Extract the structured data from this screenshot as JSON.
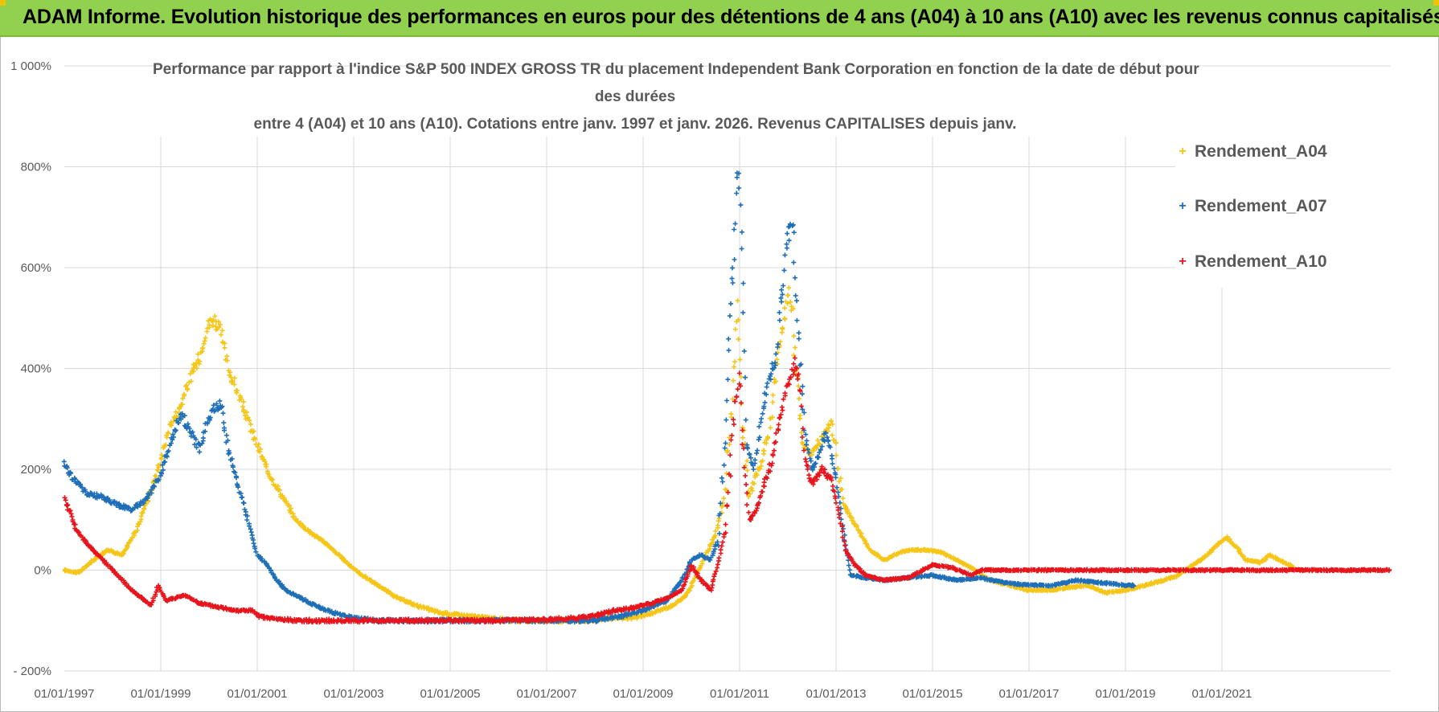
{
  "banner": {
    "title": "ADAM Informe. Evolution historique des performances en euros pour des détentions de 4 ans (A04) à 10 ans (A10) avec les revenus connus capitalisés"
  },
  "colors": {
    "banner_bg": "#92d050",
    "grid": "#d9d9d9",
    "axis_text": "#595959",
    "A04": "#f5c518",
    "A07": "#1f6fb8",
    "A10": "#e8141c"
  },
  "chart_data": {
    "type": "scatter",
    "title_lines": [
      "Performance par rapport à l'indice S&P 500 INDEX GROSS TR  du placement Independent Bank Corporation en fonction de la date de début pour",
      "des durées",
      "entre 4 (A04) et 10 ans (A10).  Cotations entre janv. 1997 et janv. 2026. Revenus CAPITALISES depuis janv."
    ],
    "x_tick_labels": [
      "01/01/1997",
      "01/01/1999",
      "01/01/2001",
      "01/01/2003",
      "01/01/2005",
      "01/01/2007",
      "01/01/2009",
      "01/01/2011",
      "01/01/2013",
      "01/01/2015",
      "01/01/2017",
      "01/01/2019",
      "01/01/2021"
    ],
    "x_range_years": [
      1997.0,
      2024.5
    ],
    "y_tick_labels": [
      "- 200%",
      "0%",
      "200%",
      "400%",
      "600%",
      "800%",
      "1 000%"
    ],
    "y_tick_values": [
      -200,
      0,
      200,
      400,
      600,
      800,
      1000
    ],
    "ylim": [
      -200,
      1000
    ],
    "legend_position": "right",
    "series": [
      {
        "name": "Rendement_A04",
        "marker": "+",
        "points": [
          [
            1997.0,
            0
          ],
          [
            1997.3,
            -5
          ],
          [
            1997.6,
            20
          ],
          [
            1997.9,
            40
          ],
          [
            1998.2,
            30
          ],
          [
            1998.5,
            80
          ],
          [
            1998.8,
            160
          ],
          [
            1999.0,
            220
          ],
          [
            1999.2,
            290
          ],
          [
            1999.4,
            320
          ],
          [
            1999.6,
            380
          ],
          [
            1999.8,
            420
          ],
          [
            1999.95,
            480
          ],
          [
            2000.1,
            500
          ],
          [
            2000.25,
            470
          ],
          [
            2000.4,
            400
          ],
          [
            2000.6,
            350
          ],
          [
            2000.8,
            300
          ],
          [
            2000.95,
            260
          ],
          [
            2001.2,
            200
          ],
          [
            2001.5,
            150
          ],
          [
            2001.8,
            100
          ],
          [
            2002.1,
            75
          ],
          [
            2002.4,
            55
          ],
          [
            2002.8,
            20
          ],
          [
            2003.1,
            -5
          ],
          [
            2003.5,
            -30
          ],
          [
            2003.9,
            -55
          ],
          [
            2004.3,
            -70
          ],
          [
            2004.8,
            -85
          ],
          [
            2005.3,
            -90
          ],
          [
            2005.8,
            -95
          ],
          [
            2006.3,
            -100
          ],
          [
            2006.8,
            -100
          ],
          [
            2007.3,
            -100
          ],
          [
            2007.8,
            -100
          ],
          [
            2008.3,
            -95
          ],
          [
            2008.8,
            -95
          ],
          [
            2009.2,
            -85
          ],
          [
            2009.6,
            -70
          ],
          [
            2009.9,
            -50
          ],
          [
            2010.1,
            -10
          ],
          [
            2010.3,
            30
          ],
          [
            2010.5,
            70
          ],
          [
            2010.7,
            150
          ],
          [
            2010.85,
            350
          ],
          [
            2010.95,
            520
          ],
          [
            2011.05,
            300
          ],
          [
            2011.2,
            150
          ],
          [
            2011.4,
            200
          ],
          [
            2011.6,
            270
          ],
          [
            2011.8,
            420
          ],
          [
            2011.95,
            520
          ],
          [
            2012.05,
            560
          ],
          [
            2012.15,
            430
          ],
          [
            2012.3,
            250
          ],
          [
            2012.5,
            230
          ],
          [
            2012.7,
            260
          ],
          [
            2012.9,
            290
          ],
          [
            2013.0,
            240
          ],
          [
            2013.15,
            130
          ],
          [
            2013.4,
            90
          ],
          [
            2013.7,
            40
          ],
          [
            2014.0,
            20
          ],
          [
            2014.3,
            35
          ],
          [
            2014.6,
            40
          ],
          [
            2014.9,
            40
          ],
          [
            2015.2,
            35
          ],
          [
            2015.5,
            20
          ],
          [
            2015.8,
            5
          ],
          [
            2016.2,
            -20
          ],
          [
            2016.6,
            -30
          ],
          [
            2017.0,
            -40
          ],
          [
            2017.4,
            -40
          ],
          [
            2017.8,
            -35
          ],
          [
            2018.2,
            -30
          ],
          [
            2018.6,
            -45
          ],
          [
            2019.0,
            -40
          ],
          [
            2019.4,
            -30
          ],
          [
            2019.8,
            -20
          ],
          [
            2020.1,
            -10
          ],
          [
            2020.4,
            10
          ],
          [
            2020.7,
            30
          ],
          [
            2020.9,
            50
          ],
          [
            2021.1,
            65
          ],
          [
            2021.3,
            45
          ],
          [
            2021.5,
            20
          ],
          [
            2021.8,
            15
          ],
          [
            2022.0,
            30
          ],
          [
            2022.3,
            15
          ],
          [
            2022.5,
            5
          ]
        ]
      },
      {
        "name": "Rendement_A07",
        "marker": "+",
        "points": [
          [
            1997.0,
            210
          ],
          [
            1997.2,
            180
          ],
          [
            1997.5,
            150
          ],
          [
            1997.8,
            145
          ],
          [
            1998.1,
            130
          ],
          [
            1998.4,
            120
          ],
          [
            1998.7,
            140
          ],
          [
            1999.0,
            190
          ],
          [
            1999.2,
            250
          ],
          [
            1999.4,
            310
          ],
          [
            1999.6,
            280
          ],
          [
            1999.8,
            240
          ],
          [
            1999.95,
            290
          ],
          [
            2000.1,
            320
          ],
          [
            2000.25,
            330
          ],
          [
            2000.4,
            240
          ],
          [
            2000.6,
            170
          ],
          [
            2000.8,
            100
          ],
          [
            2001.0,
            30
          ],
          [
            2001.2,
            10
          ],
          [
            2001.4,
            -20
          ],
          [
            2001.6,
            -40
          ],
          [
            2001.8,
            -50
          ],
          [
            2002.0,
            -60
          ],
          [
            2002.3,
            -75
          ],
          [
            2002.6,
            -85
          ],
          [
            2003.0,
            -95
          ],
          [
            2003.5,
            -100
          ],
          [
            2004.0,
            -100
          ],
          [
            2005.0,
            -100
          ],
          [
            2006.0,
            -100
          ],
          [
            2007.0,
            -100
          ],
          [
            2008.0,
            -100
          ],
          [
            2008.6,
            -90
          ],
          [
            2009.0,
            -80
          ],
          [
            2009.5,
            -60
          ],
          [
            2009.8,
            -20
          ],
          [
            2010.0,
            20
          ],
          [
            2010.2,
            30
          ],
          [
            2010.4,
            20
          ],
          [
            2010.55,
            60
          ],
          [
            2010.7,
            250
          ],
          [
            2010.8,
            500
          ],
          [
            2010.9,
            650
          ],
          [
            2010.98,
            820
          ],
          [
            2011.05,
            660
          ],
          [
            2011.15,
            250
          ],
          [
            2011.3,
            200
          ],
          [
            2011.45,
            300
          ],
          [
            2011.6,
            380
          ],
          [
            2011.75,
            420
          ],
          [
            2011.9,
            560
          ],
          [
            2012.0,
            660
          ],
          [
            2012.1,
            680
          ],
          [
            2012.2,
            500
          ],
          [
            2012.35,
            270
          ],
          [
            2012.5,
            200
          ],
          [
            2012.65,
            230
          ],
          [
            2012.8,
            280
          ],
          [
            2013.0,
            180
          ],
          [
            2013.15,
            80
          ],
          [
            2013.3,
            -10
          ],
          [
            2013.6,
            -15
          ],
          [
            2014.0,
            -20
          ],
          [
            2014.5,
            -15
          ],
          [
            2015.0,
            -10
          ],
          [
            2015.5,
            -20
          ],
          [
            2016.0,
            -15
          ],
          [
            2016.5,
            -25
          ],
          [
            2017.0,
            -30
          ],
          [
            2017.5,
            -30
          ],
          [
            2018.0,
            -20
          ],
          [
            2018.5,
            -25
          ],
          [
            2019.0,
            -30
          ],
          [
            2019.2,
            -30
          ]
        ]
      },
      {
        "name": "Rendement_A10",
        "marker": "+",
        "points": [
          [
            1997.0,
            140
          ],
          [
            1997.1,
            120
          ],
          [
            1997.25,
            80
          ],
          [
            1997.4,
            60
          ],
          [
            1997.6,
            40
          ],
          [
            1997.8,
            20
          ],
          [
            1998.0,
            0
          ],
          [
            1998.2,
            -20
          ],
          [
            1998.4,
            -40
          ],
          [
            1998.6,
            -55
          ],
          [
            1998.8,
            -70
          ],
          [
            1998.95,
            -30
          ],
          [
            1999.1,
            -60
          ],
          [
            1999.3,
            -55
          ],
          [
            1999.5,
            -50
          ],
          [
            1999.8,
            -65
          ],
          [
            2000.0,
            -70
          ],
          [
            2000.3,
            -75
          ],
          [
            2000.6,
            -80
          ],
          [
            2000.9,
            -80
          ],
          [
            2001.0,
            -90
          ],
          [
            2001.2,
            -95
          ],
          [
            2001.5,
            -98
          ],
          [
            2002.0,
            -100
          ],
          [
            2003.0,
            -100
          ],
          [
            2004.0,
            -100
          ],
          [
            2005.0,
            -100
          ],
          [
            2006.0,
            -100
          ],
          [
            2007.0,
            -98
          ],
          [
            2007.6,
            -95
          ],
          [
            2008.0,
            -90
          ],
          [
            2008.4,
            -80
          ],
          [
            2008.8,
            -75
          ],
          [
            2009.2,
            -65
          ],
          [
            2009.5,
            -55
          ],
          [
            2009.8,
            -40
          ],
          [
            2010.0,
            10
          ],
          [
            2010.2,
            -20
          ],
          [
            2010.4,
            -40
          ],
          [
            2010.55,
            10
          ],
          [
            2010.7,
            80
          ],
          [
            2010.8,
            200
          ],
          [
            2010.9,
            330
          ],
          [
            2011.0,
            380
          ],
          [
            2011.1,
            200
          ],
          [
            2011.2,
            100
          ],
          [
            2011.35,
            120
          ],
          [
            2011.5,
            170
          ],
          [
            2011.65,
            210
          ],
          [
            2011.8,
            280
          ],
          [
            2011.95,
            350
          ],
          [
            2012.05,
            380
          ],
          [
            2012.15,
            410
          ],
          [
            2012.25,
            380
          ],
          [
            2012.35,
            220
          ],
          [
            2012.5,
            170
          ],
          [
            2012.7,
            200
          ],
          [
            2012.9,
            180
          ],
          [
            2013.05,
            120
          ],
          [
            2013.2,
            40
          ],
          [
            2013.4,
            10
          ],
          [
            2013.6,
            -10
          ],
          [
            2014.0,
            -20
          ],
          [
            2014.5,
            -15
          ],
          [
            2015.0,
            10
          ],
          [
            2015.4,
            5
          ],
          [
            2015.8,
            -10
          ],
          [
            2016.0,
            0
          ],
          [
            2017.0,
            0
          ],
          [
            2018.0,
            0
          ],
          [
            2019.0,
            0
          ],
          [
            2020.0,
            0
          ],
          [
            2021.0,
            0
          ],
          [
            2022.0,
            0
          ],
          [
            2023.0,
            0
          ],
          [
            2024.0,
            0
          ],
          [
            2024.5,
            0
          ]
        ]
      }
    ]
  }
}
